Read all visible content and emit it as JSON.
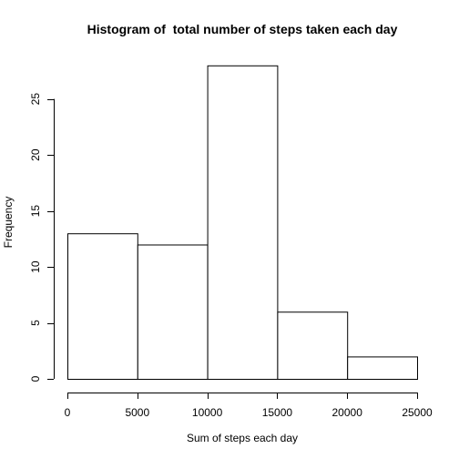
{
  "chart_data": {
    "type": "bar",
    "subtype": "histogram",
    "title": "Histogram of  total number of steps taken each day",
    "xlabel": "Sum of steps each day",
    "ylabel": "Frequency",
    "bins": [
      {
        "from": 0,
        "to": 5000,
        "count": 13
      },
      {
        "from": 5000,
        "to": 10000,
        "count": 12
      },
      {
        "from": 10000,
        "to": 15000,
        "count": 28
      },
      {
        "from": 15000,
        "to": 20000,
        "count": 6
      },
      {
        "from": 20000,
        "to": 25000,
        "count": 2
      }
    ],
    "xlim": [
      0,
      25000
    ],
    "ylim": [
      0,
      28
    ],
    "x_ticks": [
      0,
      5000,
      10000,
      15000,
      20000,
      25000
    ],
    "x_tick_labels": [
      "0",
      "5000",
      "10000",
      "15000",
      "20000",
      "25000"
    ],
    "y_ticks": [
      0,
      5,
      10,
      15,
      20,
      25
    ],
    "y_tick_labels": [
      "0",
      "5",
      "10",
      "15",
      "20",
      "25"
    ],
    "grid": false,
    "legend": "none",
    "colors": {
      "bar_fill": "#ffffff",
      "bar_stroke": "#000000",
      "axis": "#000000"
    }
  }
}
